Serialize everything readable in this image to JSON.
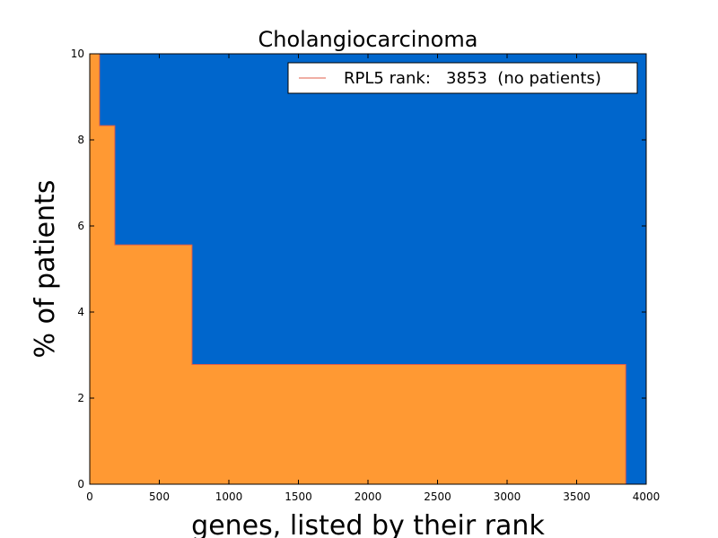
{
  "chart_data": {
    "type": "area",
    "title": "Cholangiocarcinoma",
    "xlabel": "genes, listed by their rank",
    "ylabel": "% of patients",
    "xlim": [
      0,
      4000
    ],
    "ylim": [
      0,
      10
    ],
    "xticks": [
      0,
      500,
      1000,
      1500,
      2000,
      2500,
      3000,
      3500,
      4000
    ],
    "yticks": [
      0,
      2,
      4,
      6,
      8,
      10
    ],
    "grid": false,
    "legend_position": "top-right",
    "colors": {
      "background_fill": "#0066cc",
      "area_fill": "#ff9933",
      "edge_line": "#e05c4a"
    },
    "series": [
      {
        "name": "RPL5 rank:   3853  (no patients)",
        "x": [
          0,
          70,
          70,
          180,
          180,
          735,
          735,
          3853,
          3853
        ],
        "y": [
          10,
          10,
          8.33,
          8.33,
          5.56,
          5.56,
          2.78,
          2.78,
          0
        ]
      }
    ]
  }
}
